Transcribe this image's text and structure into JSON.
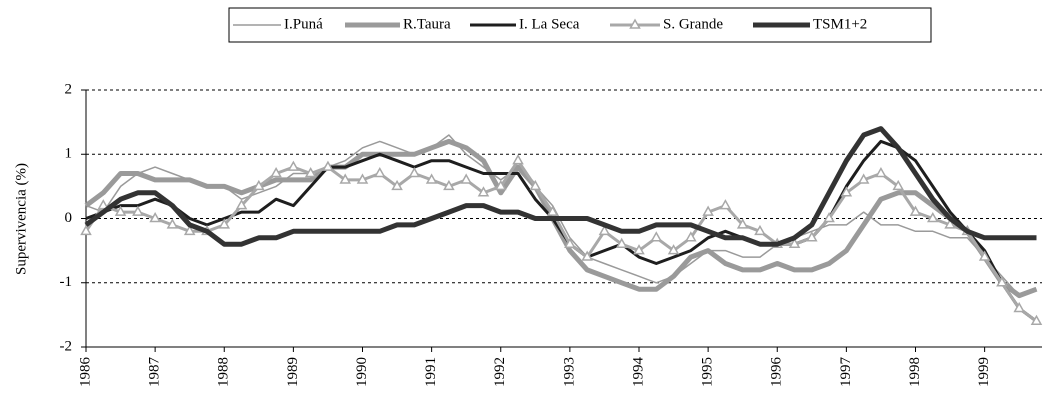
{
  "chart_data": {
    "type": "line",
    "y_label": "Supervivencia (%)",
    "x": [
      1986,
      1986.25,
      1986.5,
      1986.75,
      1987,
      1987.25,
      1987.5,
      1987.75,
      1988,
      1988.25,
      1988.5,
      1988.75,
      1989,
      1989.25,
      1989.5,
      1989.75,
      1990,
      1990.25,
      1990.5,
      1990.75,
      1991,
      1991.25,
      1991.5,
      1991.75,
      1992,
      1992.25,
      1992.5,
      1992.75,
      1993,
      1993.25,
      1993.5,
      1993.75,
      1994,
      1994.25,
      1994.5,
      1994.75,
      1995,
      1995.25,
      1995.5,
      1995.75,
      1996,
      1996.25,
      1996.5,
      1996.75,
      1997,
      1997.25,
      1997.5,
      1997.75,
      1998,
      1998.25,
      1998.5,
      1998.75,
      1999,
      1999.25,
      1999.5,
      1999.75
    ],
    "xlim": [
      1986,
      1999.83
    ],
    "xticks": [
      1986,
      1987,
      1988,
      1989,
      1990,
      1991,
      1992,
      1993,
      1994,
      1995,
      1996,
      1997,
      1998,
      1999
    ],
    "ylim": [
      -2,
      2
    ],
    "yticks": [
      -2,
      -1,
      0,
      1,
      2
    ],
    "grid": true,
    "legend": "top",
    "series": [
      {
        "name": "I.Puná",
        "color": "#9a9a9a",
        "values": [
          0.2,
          0.1,
          0.5,
          0.7,
          0.8,
          0.7,
          0.6,
          0.5,
          0.5,
          0.3,
          0.4,
          0.5,
          0.7,
          0.7,
          0.8,
          0.9,
          1.1,
          1.2,
          1.1,
          1.0,
          1.1,
          1.3,
          1.0,
          0.8,
          0.6,
          0.8,
          0.5,
          0.2,
          -0.3,
          -0.6,
          -0.7,
          -0.8,
          -0.9,
          -1.0,
          -0.9,
          -0.7,
          -0.5,
          -0.5,
          -0.6,
          -0.6,
          -0.4,
          -0.3,
          -0.2,
          -0.1,
          -0.1,
          0.1,
          -0.1,
          -0.1,
          -0.2,
          -0.2,
          -0.3,
          -0.3,
          -0.6,
          -0.9,
          -1.2,
          -1.1
        ]
      },
      {
        "name": "R.Taura",
        "color": "#9a9a9a",
        "values": [
          0.2,
          0.4,
          0.7,
          0.7,
          0.6,
          0.6,
          0.6,
          0.5,
          0.5,
          0.4,
          0.5,
          0.6,
          0.6,
          0.6,
          0.8,
          0.8,
          1.0,
          1.0,
          1.0,
          1.0,
          1.1,
          1.2,
          1.1,
          0.9,
          0.4,
          0.8,
          0.5,
          0.0,
          -0.5,
          -0.8,
          -0.9,
          -1.0,
          -1.1,
          -1.1,
          -0.9,
          -0.6,
          -0.5,
          -0.7,
          -0.8,
          -0.8,
          -0.7,
          -0.8,
          -0.8,
          -0.7,
          -0.5,
          -0.1,
          0.3,
          0.4,
          0.4,
          0.2,
          0.0,
          -0.2,
          -0.6,
          -1.0,
          -1.2,
          -1.1
        ]
      },
      {
        "name": "I. La Seca",
        "color": "#1e1e1e",
        "values": [
          0.0,
          0.1,
          0.2,
          0.2,
          0.3,
          0.2,
          0.0,
          -0.1,
          0.0,
          0.1,
          0.1,
          0.3,
          0.2,
          0.5,
          0.8,
          0.8,
          0.9,
          1.0,
          0.9,
          0.8,
          0.9,
          0.9,
          0.8,
          0.7,
          0.7,
          0.7,
          0.3,
          0.0,
          -0.4,
          -0.6,
          -0.5,
          -0.4,
          -0.6,
          -0.7,
          -0.6,
          -0.5,
          -0.3,
          -0.2,
          -0.3,
          -0.4,
          -0.4,
          -0.4,
          -0.3,
          0.0,
          0.5,
          0.9,
          1.2,
          1.1,
          0.9,
          0.5,
          0.1,
          -0.2,
          -0.5,
          -1.0,
          -1.4,
          -1.6
        ]
      },
      {
        "name": "S. Grande",
        "color": "#a8a8a8",
        "values": [
          -0.2,
          0.2,
          0.1,
          0.1,
          0.0,
          -0.1,
          -0.2,
          -0.2,
          -0.1,
          0.2,
          0.5,
          0.7,
          0.8,
          0.7,
          0.8,
          0.6,
          0.6,
          0.7,
          0.5,
          0.7,
          0.6,
          0.5,
          0.6,
          0.4,
          0.5,
          0.9,
          0.5,
          0.1,
          -0.4,
          -0.6,
          -0.2,
          -0.4,
          -0.5,
          -0.3,
          -0.5,
          -0.3,
          0.1,
          0.2,
          -0.1,
          -0.2,
          -0.4,
          -0.4,
          -0.3,
          0.0,
          0.4,
          0.6,
          0.7,
          0.5,
          0.1,
          0.0,
          -0.1,
          -0.2,
          -0.6,
          -1.0,
          -1.4,
          -1.6
        ]
      },
      {
        "name": "TSM1+2",
        "color": "#333333",
        "values": [
          -0.1,
          0.1,
          0.3,
          0.4,
          0.4,
          0.2,
          -0.1,
          -0.2,
          -0.4,
          -0.4,
          -0.3,
          -0.3,
          -0.2,
          -0.2,
          -0.2,
          -0.2,
          -0.2,
          -0.2,
          -0.1,
          -0.1,
          0.0,
          0.1,
          0.2,
          0.2,
          0.1,
          0.1,
          0.0,
          0.0,
          0.0,
          0.0,
          -0.1,
          -0.2,
          -0.2,
          -0.1,
          -0.1,
          -0.1,
          -0.2,
          -0.3,
          -0.3,
          -0.4,
          -0.4,
          -0.3,
          -0.1,
          0.4,
          0.9,
          1.3,
          1.4,
          1.1,
          0.7,
          0.3,
          0.0,
          -0.2,
          -0.3,
          -0.3,
          -0.3,
          -0.3
        ]
      }
    ]
  }
}
